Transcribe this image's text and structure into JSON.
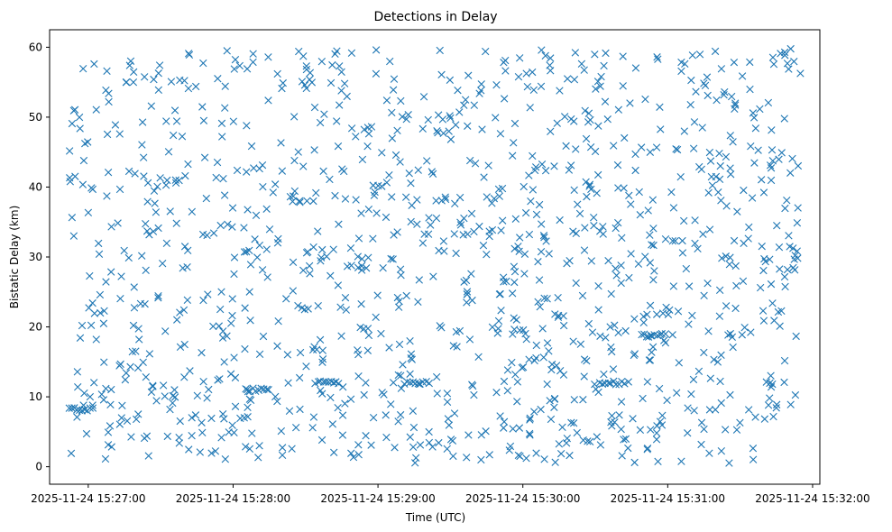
{
  "chart_data": {
    "type": "scatter",
    "title": "Detections in Delay",
    "xlabel": "Time (UTC)",
    "ylabel": "Bistatic Delay (km)",
    "marker": "x",
    "color": "#1f77b4",
    "grid": false,
    "xlim": [
      "2025-11-24 15:26:44",
      "2025-11-24 15:32:03"
    ],
    "ylim": [
      -2.5,
      62.5
    ],
    "x_ticks": [
      "2025-11-24 15:27:00",
      "2025-11-24 15:28:00",
      "2025-11-24 15:29:00",
      "2025-11-24 15:30:00",
      "2025-11-24 15:31:00",
      "2025-11-24 15:32:00"
    ],
    "y_ticks": [
      "0",
      "10",
      "20",
      "30",
      "40",
      "50",
      "60"
    ],
    "x_range_data": [
      "2025-11-24 15:26:52",
      "2025-11-24 15:31:55"
    ],
    "y_range_data": [
      0.5,
      59.8
    ],
    "n_points": 1250,
    "clusters": [
      {
        "x": "2025-11-24 15:26:52",
        "y": 8.2
      },
      {
        "x": "2025-11-24 15:28:05",
        "y": 11.0
      },
      {
        "x": "2025-11-24 15:28:34",
        "y": 12.0
      },
      {
        "x": "2025-11-24 15:29:11",
        "y": 12.0
      },
      {
        "x": "2025-11-24 15:30:32",
        "y": 12.0
      },
      {
        "x": "2025-11-24 15:30:49",
        "y": 18.8
      }
    ]
  }
}
